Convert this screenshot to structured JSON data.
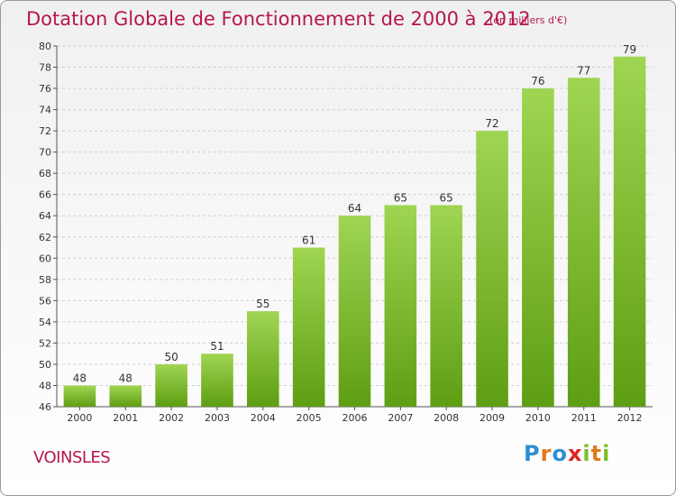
{
  "header": {
    "title": "Dotation Globale de Fonctionnement de 2000 à 2012",
    "subtitle": "(en milliers d'€)"
  },
  "footer": {
    "commune": "VOINSLES",
    "logo": "Proxiti"
  },
  "colors": {
    "accent": "#b5164f",
    "bar_top": "#9fd552",
    "bar_bottom": "#5e9e13"
  },
  "chart_data": {
    "type": "bar",
    "title": "Dotation Globale de Fonctionnement de 2000 à 2012",
    "subtitle": "(en milliers d'€)",
    "xlabel": "",
    "ylabel": "",
    "categories": [
      "2000",
      "2001",
      "2002",
      "2003",
      "2004",
      "2005",
      "2006",
      "2007",
      "2008",
      "2009",
      "2010",
      "2011",
      "2012"
    ],
    "values": [
      48,
      48,
      50,
      51,
      55,
      61,
      64,
      65,
      65,
      72,
      76,
      77,
      79
    ],
    "ylim": [
      46,
      80
    ],
    "yticks": [
      46,
      48,
      50,
      52,
      54,
      56,
      58,
      60,
      62,
      64,
      66,
      68,
      70,
      72,
      74,
      76,
      78,
      80
    ],
    "grid": true,
    "grid_axis": "y"
  }
}
